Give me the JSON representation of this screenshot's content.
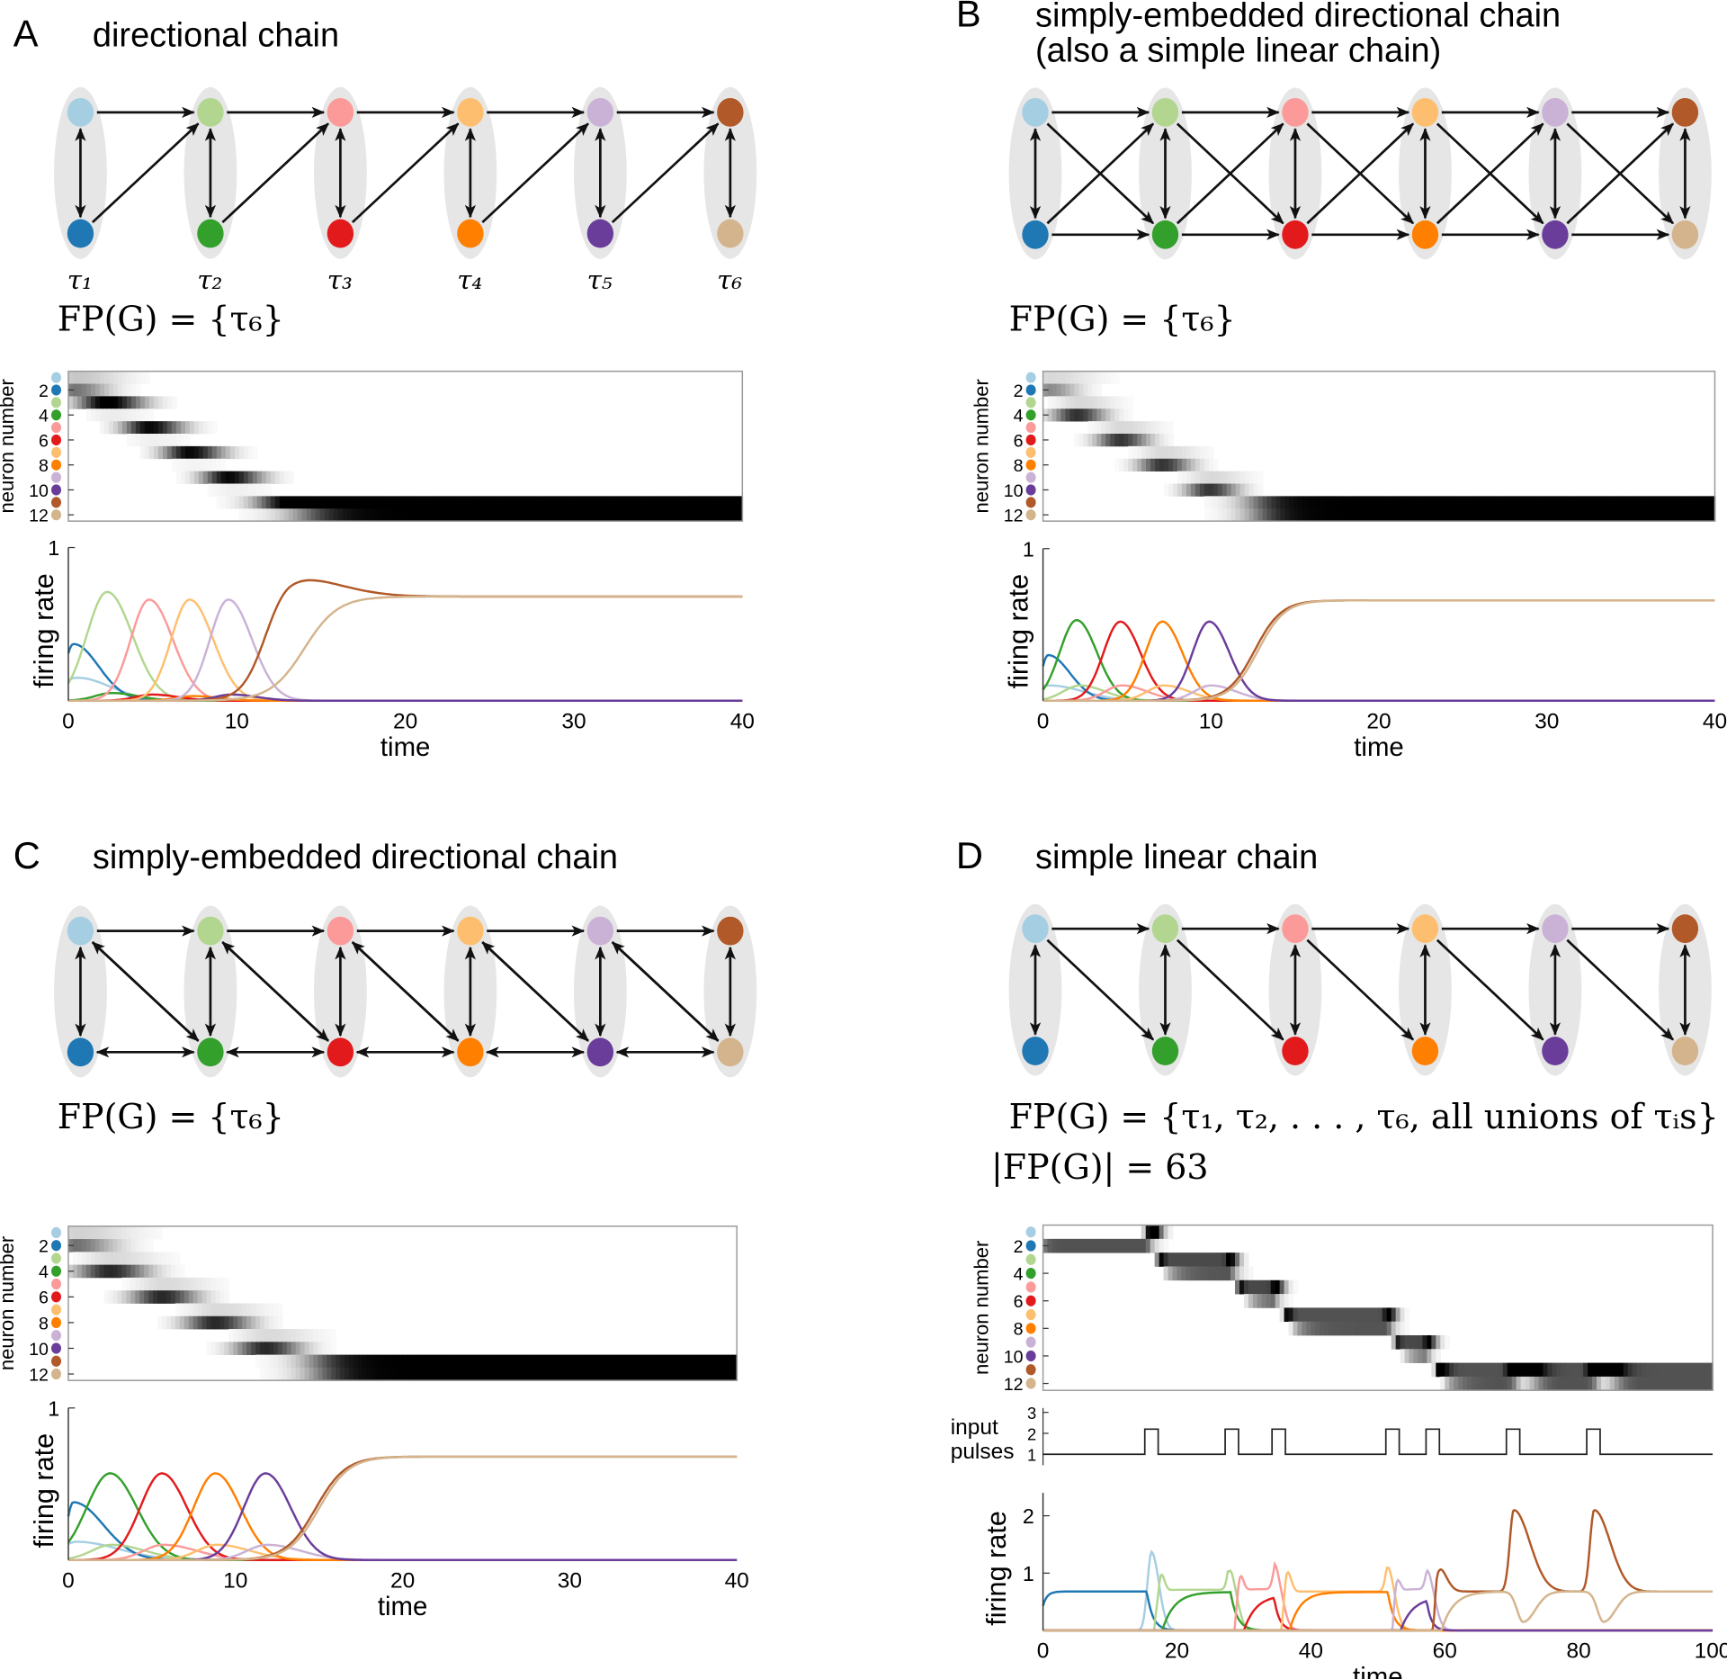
{
  "colors": [
    "#a6cee3",
    "#1f78b4",
    "#b2d68f",
    "#33a02c",
    "#fb9a99",
    "#e31a1c",
    "#fdbf6f",
    "#ff7f00",
    "#cab2d6",
    "#6a3d9a",
    "#b15928",
    "#d4b48c"
  ],
  "common": {
    "xlabel": "time",
    "raster_ylabel": "neuron number",
    "firing_ylabel": "firing rate",
    "raster_ticks": [
      "2",
      "4",
      "6",
      "8",
      "10",
      "12"
    ],
    "pulse_ylabel": [
      "input",
      "pulses"
    ]
  },
  "tau_labels": [
    "τ₁",
    "τ₂",
    "τ₃",
    "τ₄",
    "τ₅",
    "τ₆"
  ],
  "panels": [
    {
      "letter": "A",
      "title": [
        "directional chain"
      ],
      "edges": "directional",
      "fp": [
        "FP(G) = {τ₆}"
      ],
      "chart_data": {
        "type": "line",
        "xlim": [
          0,
          40
        ],
        "ylim": [
          0,
          1
        ],
        "x_ticks": [
          "0",
          "10",
          "20",
          "30",
          "40"
        ],
        "y_ticks": [
          "1"
        ],
        "xlabel": "time",
        "ylabel": "firing rate",
        "raster_black_at": 0.68,
        "series": [
          {
            "name": "1",
            "bumps": [
              [
                0.5,
                0.15,
                1,
                2
              ]
            ]
          },
          {
            "name": "2",
            "bumps": [
              [
                0.3,
                0.37,
                0.5,
                1.5
              ]
            ]
          },
          {
            "name": "3",
            "bumps": [
              [
                2.3,
                0.71,
                1.2,
                1.5
              ]
            ]
          },
          {
            "name": "4",
            "bumps": [
              [
                2.6,
                0.05,
                1,
                1.5
              ]
            ]
          },
          {
            "name": "5",
            "bumps": [
              [
                4.8,
                0.66,
                1.1,
                1.4
              ]
            ]
          },
          {
            "name": "6",
            "bumps": [
              [
                5,
                0.04,
                1,
                1.5
              ]
            ]
          },
          {
            "name": "7",
            "bumps": [
              [
                7.2,
                0.66,
                1.1,
                1.4
              ]
            ]
          },
          {
            "name": "8",
            "bumps": [
              [
                7.4,
                0.03,
                1,
                1.5
              ]
            ]
          },
          {
            "name": "9",
            "bumps": [
              [
                9.5,
                0.66,
                1.1,
                1.4
              ]
            ]
          },
          {
            "name": "10",
            "bumps": [
              [
                9.7,
                0.04,
                1,
                1.5
              ]
            ]
          },
          {
            "name": "11",
            "sig": [
              11.6,
              0.68,
              0.7
            ],
            "bumps": [
              [
                13.2,
                0.13,
                1.2,
                2.8
              ]
            ]
          },
          {
            "name": "12",
            "sig": [
              14,
              0.68,
              1.0
            ]
          }
        ]
      }
    },
    {
      "letter": "B",
      "title": [
        "simply-embedded directional chain",
        "(also a simple linear chain)"
      ],
      "edges": "simply_embedded_linear",
      "fp": [
        "FP(G) = {τ₆}"
      ],
      "chart_data": {
        "type": "line",
        "xlim": [
          0,
          40
        ],
        "ylim": [
          0,
          1
        ],
        "x_ticks": [
          "0",
          "10",
          "20",
          "30",
          "40"
        ],
        "y_ticks": [
          "1"
        ],
        "xlabel": "time",
        "ylabel": "firing rate",
        "raster_black_at": 0.66,
        "series": [
          {
            "name": "1",
            "bumps": [
              [
                0.4,
                0.1,
                1,
                2
              ]
            ]
          },
          {
            "name": "2",
            "bumps": [
              [
                0.3,
                0.3,
                0.4,
                1.3
              ]
            ]
          },
          {
            "name": "3",
            "bumps": [
              [
                2.2,
                0.1,
                1,
                1.5
              ]
            ]
          },
          {
            "name": "4",
            "bumps": [
              [
                2,
                0.53,
                1.0,
                1.2
              ]
            ]
          },
          {
            "name": "5",
            "bumps": [
              [
                4.7,
                0.1,
                1,
                1.5
              ]
            ]
          },
          {
            "name": "6",
            "bumps": [
              [
                4.6,
                0.52,
                1.0,
                1.2
              ]
            ]
          },
          {
            "name": "7",
            "bumps": [
              [
                7.2,
                0.1,
                1,
                1.5
              ]
            ]
          },
          {
            "name": "8",
            "bumps": [
              [
                7.1,
                0.52,
                1.0,
                1.2
              ]
            ]
          },
          {
            "name": "9",
            "bumps": [
              [
                10,
                0.1,
                1,
                1.5
              ]
            ]
          },
          {
            "name": "10",
            "bumps": [
              [
                9.9,
                0.52,
                1.0,
                1.2
              ]
            ]
          },
          {
            "name": "11",
            "sig": [
              12.6,
              0.66,
              0.8
            ]
          },
          {
            "name": "12",
            "sig": [
              12.8,
              0.66,
              0.8
            ]
          }
        ]
      }
    },
    {
      "letter": "C",
      "title": [
        "simply-embedded directional chain"
      ],
      "edges": "simply_embedded_directional",
      "fp": [
        "FP(G) = {τ₆}"
      ],
      "chart_data": {
        "type": "line",
        "xlim": [
          0,
          40
        ],
        "ylim": [
          0,
          1
        ],
        "x_ticks": [
          "0",
          "10",
          "20",
          "30",
          "40"
        ],
        "y_ticks": [
          "1"
        ],
        "xlabel": "time",
        "ylabel": "firing rate",
        "raster_black_at": 0.68,
        "series": [
          {
            "name": "1",
            "bumps": [
              [
                0.5,
                0.12,
                1,
                2.5
              ]
            ]
          },
          {
            "name": "2",
            "bumps": [
              [
                0.3,
                0.38,
                0.4,
                1.8
              ]
            ]
          },
          {
            "name": "3",
            "bumps": [
              [
                2.6,
                0.1,
                1.2,
                2
              ]
            ]
          },
          {
            "name": "4",
            "bumps": [
              [
                2.5,
                0.57,
                1.4,
                1.6
              ]
            ]
          },
          {
            "name": "5",
            "bumps": [
              [
                5.7,
                0.1,
                1.2,
                2
              ]
            ]
          },
          {
            "name": "6",
            "bumps": [
              [
                5.6,
                0.57,
                1.3,
                1.5
              ]
            ]
          },
          {
            "name": "7",
            "bumps": [
              [
                8.9,
                0.1,
                1.2,
                2
              ]
            ]
          },
          {
            "name": "8",
            "bumps": [
              [
                8.8,
                0.57,
                1.3,
                1.5
              ]
            ]
          },
          {
            "name": "9",
            "bumps": [
              [
                11.9,
                0.1,
                1.2,
                2
              ]
            ]
          },
          {
            "name": "10",
            "bumps": [
              [
                11.8,
                0.57,
                1.3,
                1.5
              ]
            ]
          },
          {
            "name": "11",
            "sig": [
              14.8,
              0.68,
              0.9
            ]
          },
          {
            "name": "12",
            "sig": [
              15,
              0.68,
              0.9
            ]
          }
        ]
      }
    },
    {
      "letter": "D",
      "title": [
        "simple linear chain"
      ],
      "edges": "linear",
      "fp": [
        "FP(G) = {τ₁, τ₂, . . . , τ₆,  all unions of τᵢs}",
        "|FP(G)| = 63"
      ],
      "chart_data": {
        "type": "line",
        "xlim": [
          0,
          100
        ],
        "ylim": [
          0,
          2.4
        ],
        "x_ticks": [
          "0",
          "20",
          "40",
          "60",
          "80",
          "100"
        ],
        "y_ticks": [
          "1",
          "2"
        ],
        "xlabel": "time",
        "ylabel": "firing rate",
        "raster_black_at": 1.0,
        "input_pulses": {
          "ylim": [
            1,
            3
          ],
          "y_ticks": [
            "1",
            "2",
            "3"
          ],
          "baseline": 1,
          "pulse_level": 2.2,
          "pulses": [
            [
              15.2,
              17.2
            ],
            [
              27.2,
              29.2
            ],
            [
              34.2,
              36.2
            ],
            [
              51.2,
              53.2
            ],
            [
              57.2,
              59.2
            ],
            [
              69.2,
              71.2
            ],
            [
              81.2,
              83.2
            ]
          ]
        },
        "series": [
          {
            "name": "1",
            "bumps": [
              [
                16.2,
                1.37,
                0.6,
                1.1
              ]
            ]
          },
          {
            "name": "2",
            "plateaus": [
              [
                -0.6,
                15.5,
                0.68,
                0.6,
                0.9
              ]
            ]
          },
          {
            "name": "3",
            "bumps": [
              [
                17.6,
                0.35,
                0.3,
                0.5
              ],
              [
                28.2,
                0.66,
                0.5,
                0.9
              ]
            ],
            "plateaus": [
              [
                16.6,
                27.6,
                0.71,
                0.5,
                0.8
              ]
            ]
          },
          {
            "name": "4",
            "plateaus": [
              [
                17.8,
                28,
                0.67,
                1.8,
                1.0
              ]
            ]
          },
          {
            "name": "5",
            "bumps": [
              [
                29.4,
                0.35,
                0.3,
                0.5
              ],
              [
                35,
                0.6,
                0.5,
                0.9
              ]
            ],
            "plateaus": [
              [
                28.6,
                34.6,
                0.72,
                0.5,
                0.8
              ]
            ]
          },
          {
            "name": "6",
            "plateaus": [
              [
                30,
                34.5,
                0.62,
                1.8,
                0.8
              ]
            ]
          },
          {
            "name": "7",
            "bumps": [
              [
                36.4,
                0.45,
                0.3,
                0.6
              ],
              [
                51.8,
                0.68,
                0.5,
                0.9
              ]
            ],
            "plateaus": [
              [
                35.6,
                51.3,
                0.68,
                0.5,
                0.8
              ]
            ]
          },
          {
            "name": "8",
            "plateaus": [
              [
                36.8,
                51.5,
                0.67,
                1.6,
                0.9
              ]
            ]
          },
          {
            "name": "9",
            "bumps": [
              [
                52.8,
                0.33,
                0.3,
                0.5
              ],
              [
                57.8,
                0.56,
                0.5,
                0.9
              ]
            ],
            "plateaus": [
              [
                52.2,
                57.3,
                0.72,
                0.5,
                0.8
              ]
            ]
          },
          {
            "name": "10",
            "plateaus": [
              [
                53.4,
                57.3,
                0.58,
                1.8,
                0.7
              ]
            ]
          },
          {
            "name": "11",
            "bumps": [
              [
                58.9,
                0.5,
                0.3,
                1.2
              ],
              [
                70.3,
                1.42,
                0.6,
                2.4
              ],
              [
                82.3,
                1.42,
                0.6,
                2.4
              ]
            ],
            "plateaus": [
              [
                58.3,
                101,
                0.68,
                0.5,
                1
              ]
            ]
          },
          {
            "name": "12",
            "bumps": [
              [
                71.7,
                -0.53,
                0.9,
                1.8
              ],
              [
                83.7,
                -0.53,
                0.9,
                1.8
              ]
            ],
            "plateaus": [
              [
                59.5,
                101,
                0.68,
                1.8,
                1
              ]
            ]
          }
        ]
      }
    }
  ]
}
